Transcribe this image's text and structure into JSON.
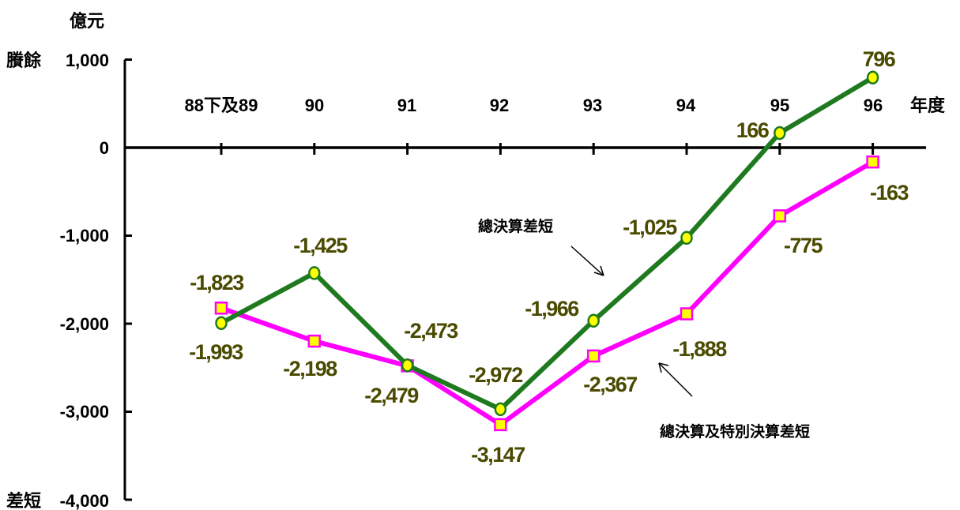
{
  "chart_data": {
    "type": "line",
    "unit_label": "億元",
    "x_unit_label": "年度",
    "surplus_label": "賸餘",
    "deficit_label": "差短",
    "categories": [
      "88下及89",
      "90",
      "91",
      "92",
      "93",
      "94",
      "95",
      "96"
    ],
    "ylim": [
      -4000,
      1000
    ],
    "yticks": [
      1000,
      0,
      -1000,
      -2000,
      -3000,
      -4000
    ],
    "ytick_labels": [
      "1,000",
      "0",
      "-1,000",
      "-2,000",
      "-3,000",
      "-4,000"
    ],
    "grid": false,
    "legend": "none",
    "series": [
      {
        "name": "總決算差短",
        "values": [
          -1993,
          -1425,
          -2473,
          -2972,
          -1966,
          -1025,
          166,
          796
        ],
        "labels": [
          "-1,993",
          "-1,425",
          "-2,473",
          "-2,972",
          "-1,966",
          "-1,025",
          "166",
          "796"
        ],
        "color": "#1f7a1f",
        "marker": "circle",
        "marker_color": "#ffff00"
      },
      {
        "name": "總決算及特別決算差短",
        "values": [
          -1823,
          -2198,
          -2479,
          -3147,
          -2367,
          -1888,
          -775,
          -163
        ],
        "labels": [
          "-1,823",
          "-2,198",
          "-2,479",
          "-3,147",
          "-2,367",
          "-1,888",
          "-775",
          "-163"
        ],
        "color": "#ff00ff",
        "marker": "square",
        "marker_color": "#ffff00"
      }
    ]
  }
}
